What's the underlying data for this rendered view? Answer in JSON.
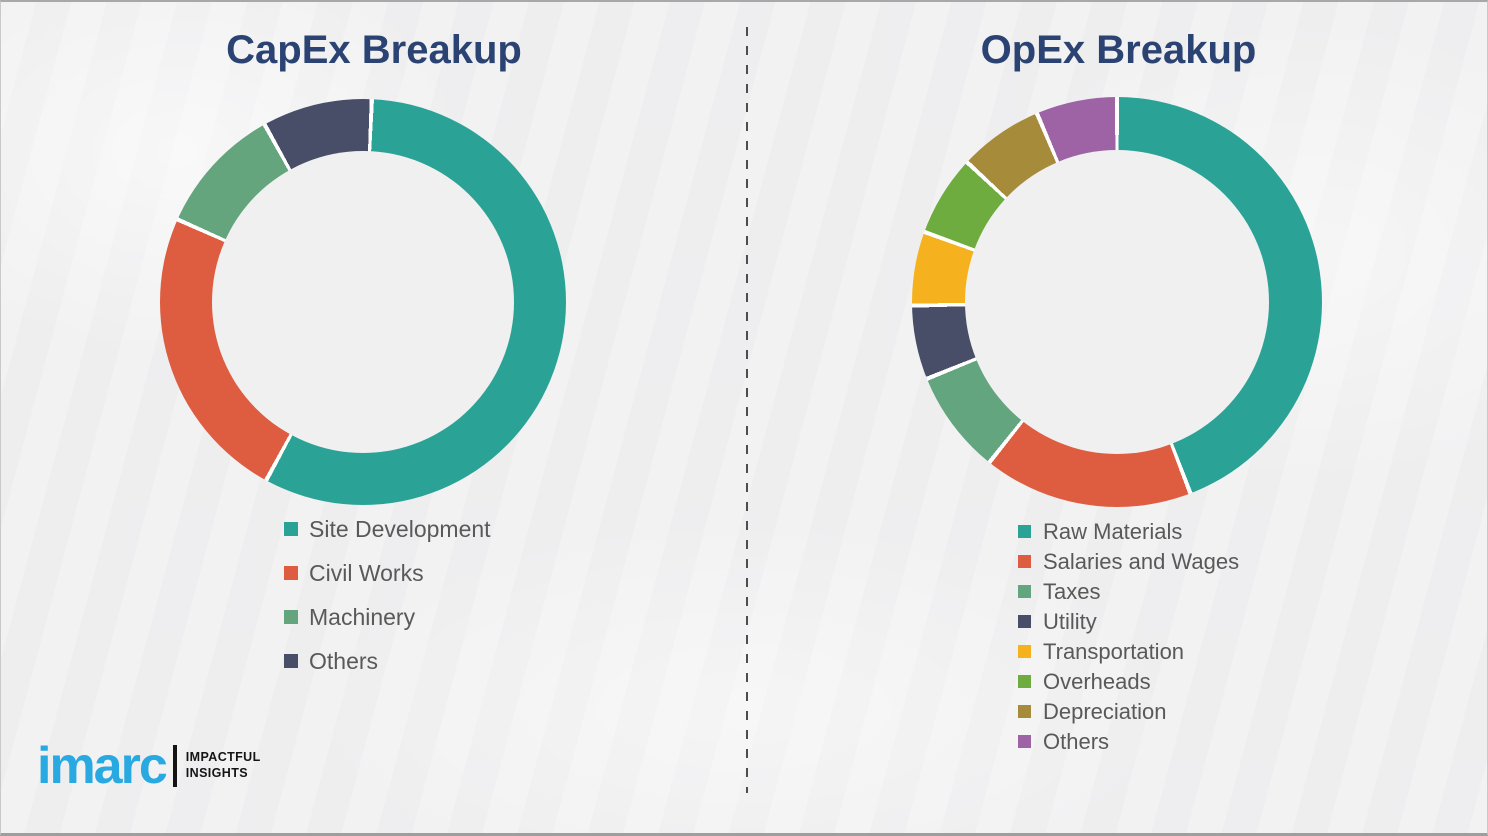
{
  "theme": {
    "background": "#F0F0F1",
    "title_color": "#2B4373",
    "legend_text_color": "#595959",
    "slice_separator_color": "#FFFFFF",
    "divider_color": "#4D4D4D"
  },
  "logo": {
    "brand": "imarc",
    "tagline_line1": "IMPACTFUL",
    "tagline_line2": "INSIGHTS",
    "brand_color": "#29A9E1"
  },
  "chart_data": [
    {
      "type": "pie",
      "variant": "donut",
      "title": "CapEx Breakup",
      "labels": [
        "Site Development",
        "Civil Works",
        "Machinery",
        "Others"
      ],
      "values": [
        57,
        24,
        10,
        9
      ],
      "values_unit": "percent (estimated from arc angles)",
      "colors": [
        "#2AA396",
        "#DE5C40",
        "#64A57D",
        "#484D68"
      ],
      "segment_angles_deg": [
        {
          "start": 2.5,
          "end": 208.5
        },
        {
          "start": 208.5,
          "end": 294
        },
        {
          "start": 294,
          "end": 331
        },
        {
          "start": 331,
          "end": 362.5
        }
      ],
      "start_position": "12 o'clock",
      "direction": "clockwise",
      "donut_hole_ratio": 0.74,
      "legend_position": "below chart, left-aligned",
      "grid": false
    },
    {
      "type": "pie",
      "variant": "donut",
      "title": "OpEx Breakup",
      "labels": [
        "Raw Materials",
        "Salaries and Wages",
        "Taxes",
        "Utility",
        "Transportation",
        "Overheads",
        "Depreciation",
        "Others"
      ],
      "values": [
        44,
        17,
        8,
        6,
        6,
        6,
        7,
        6
      ],
      "values_unit": "percent (estimated from arc angles)",
      "colors": [
        "#2AA396",
        "#DE5C40",
        "#63A57E",
        "#484D68",
        "#F5B21E",
        "#6FAC3F",
        "#A68B3B",
        "#9D63A5"
      ],
      "segment_angles_deg": [
        {
          "start": 0,
          "end": 159
        },
        {
          "start": 159,
          "end": 218.5
        },
        {
          "start": 218.5,
          "end": 248
        },
        {
          "start": 248,
          "end": 269
        },
        {
          "start": 269,
          "end": 290
        },
        {
          "start": 290,
          "end": 313
        },
        {
          "start": 313,
          "end": 337
        },
        {
          "start": 337,
          "end": 360
        }
      ],
      "start_position": "12 o'clock",
      "direction": "clockwise",
      "donut_hole_ratio": 0.74,
      "legend_position": "below chart, left-aligned",
      "grid": false
    }
  ]
}
